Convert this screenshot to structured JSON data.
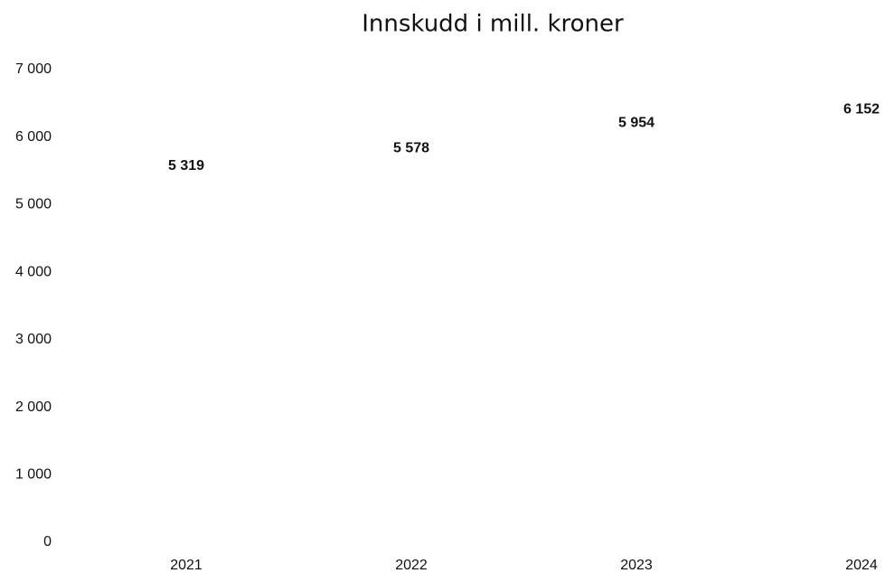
{
  "chart_data": {
    "type": "bar",
    "title": "Innskudd i mill. kroner",
    "categories": [
      "2021",
      "2022",
      "2023",
      "2024"
    ],
    "values": [
      5319,
      5578,
      5954,
      6152
    ],
    "value_labels": [
      "5 319",
      "5 578",
      "5 954",
      "6 152"
    ],
    "color": "#ffffff",
    "ylim": [
      0,
      7000
    ],
    "yticks": [
      0,
      {
        "value": 1000,
        "label": "1 000"
      },
      {
        "value": 2000,
        "label": "2 000"
      },
      {
        "value": 3000,
        "label": "3 000"
      },
      {
        "value": 4000,
        "label": "4 000"
      },
      {
        "value": 5000,
        "label": "5 000"
      },
      {
        "value": 6000,
        "label": "6 000"
      },
      {
        "value": 7000,
        "label": "7 000"
      }
    ],
    "grid": false
  }
}
